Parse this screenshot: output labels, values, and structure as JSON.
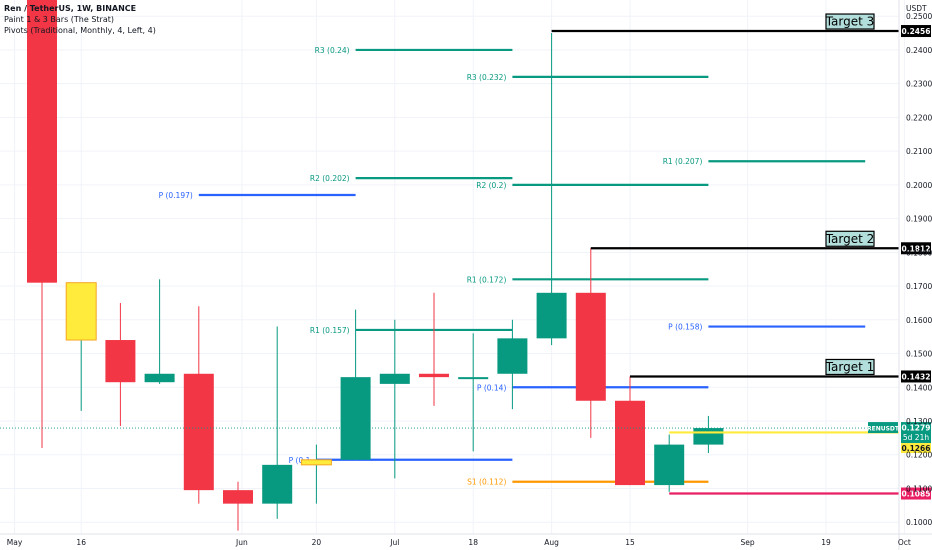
{
  "legend": {
    "symbol": "Ren / TetherUS, 1W, BINANCE",
    "indicator1": "Paint 1 & 3 Bars (The Strat)",
    "indicator2": "Pivots (Traditional, Monthly, 4, Left, 4)"
  },
  "price_axis_title": "USDT",
  "chart_data": {
    "type": "candlestick",
    "ylim": [
      0.0965,
      0.2548
    ],
    "y_ticks": [
      "0.1000",
      "0.1100",
      "0.1200",
      "0.1300",
      "0.1400",
      "0.1500",
      "0.1600",
      "0.1700",
      "0.1800",
      "0.1900",
      "0.2000",
      "0.2100",
      "0.2200",
      "0.2300",
      "0.2400",
      "0.2500"
    ],
    "x_ticks": [
      {
        "label": "May",
        "week": -0.7
      },
      {
        "label": "16",
        "week": 1
      },
      {
        "label": "Jun",
        "week": 5.1
      },
      {
        "label": "20",
        "week": 7
      },
      {
        "label": "Jul",
        "week": 9
      },
      {
        "label": "18",
        "week": 11
      },
      {
        "label": "Aug",
        "week": 13
      },
      {
        "label": "15",
        "week": 15
      },
      {
        "label": "Sep",
        "week": 18
      },
      {
        "label": "19",
        "week": 20
      },
      {
        "label": "Oct",
        "week": 22
      }
    ],
    "candles": [
      {
        "week": 0,
        "open": 0.256,
        "high": 0.256,
        "low": 0.122,
        "close": 0.171,
        "color": "red"
      },
      {
        "week": 1,
        "open": 0.171,
        "high": 0.171,
        "low": 0.133,
        "close": 0.154,
        "color": "yellow"
      },
      {
        "week": 2,
        "open": 0.154,
        "high": 0.165,
        "low": 0.1285,
        "close": 0.1415,
        "color": "red"
      },
      {
        "week": 3,
        "open": 0.1415,
        "high": 0.172,
        "low": 0.141,
        "close": 0.144,
        "color": "green"
      },
      {
        "week": 4,
        "open": 0.144,
        "high": 0.164,
        "low": 0.1055,
        "close": 0.1095,
        "color": "red"
      },
      {
        "week": 5,
        "open": 0.1095,
        "high": 0.112,
        "low": 0.0975,
        "close": 0.1055,
        "color": "red"
      },
      {
        "week": 6,
        "open": 0.1055,
        "high": 0.158,
        "low": 0.101,
        "close": 0.117,
        "color": "green"
      },
      {
        "week": 7,
        "open": 0.117,
        "high": 0.123,
        "low": 0.1055,
        "close": 0.1185,
        "color": "yellow"
      },
      {
        "week": 8,
        "open": 0.1185,
        "high": 0.163,
        "low": 0.1185,
        "close": 0.143,
        "color": "green"
      },
      {
        "week": 9,
        "open": 0.141,
        "high": 0.16,
        "low": 0.113,
        "close": 0.144,
        "color": "green"
      },
      {
        "week": 10,
        "open": 0.144,
        "high": 0.168,
        "low": 0.1345,
        "close": 0.143,
        "color": "red"
      },
      {
        "week": 11,
        "open": 0.143,
        "high": 0.156,
        "low": 0.121,
        "close": 0.143,
        "color": "green"
      },
      {
        "week": 12,
        "open": 0.144,
        "high": 0.16,
        "low": 0.1335,
        "close": 0.1545,
        "color": "green"
      },
      {
        "week": 13,
        "open": 0.1545,
        "high": 0.245,
        "low": 0.1525,
        "close": 0.168,
        "color": "green"
      },
      {
        "week": 14,
        "open": 0.168,
        "high": 0.1812,
        "low": 0.125,
        "close": 0.136,
        "color": "red"
      },
      {
        "week": 15,
        "open": 0.136,
        "high": 0.1432,
        "low": 0.111,
        "close": 0.111,
        "color": "red"
      },
      {
        "week": 16,
        "open": 0.111,
        "high": 0.126,
        "low": 0.109,
        "close": 0.123,
        "color": "green"
      },
      {
        "week": 17,
        "open": 0.123,
        "high": 0.1315,
        "low": 0.1205,
        "close": 0.1279,
        "color": "green"
      }
    ],
    "pivots": [
      {
        "label": "R3 (0.24)",
        "value": 0.24,
        "from": 8,
        "to": 12,
        "kind": "R"
      },
      {
        "label": "R2 (0.202)",
        "value": 0.202,
        "from": 8,
        "to": 12,
        "kind": "R"
      },
      {
        "label": "P (0.197)",
        "value": 0.197,
        "from": 4,
        "to": 8,
        "kind": "P"
      },
      {
        "label": "R1 (0.157)",
        "value": 0.157,
        "from": 8,
        "to": 12,
        "kind": "R"
      },
      {
        "label": "P (0.1",
        "value": 0.1185,
        "from": 7,
        "to": 8,
        "kind": "P"
      },
      {
        "label": "",
        "value": 0.1185,
        "from": 8,
        "to": 12,
        "kind": "P"
      },
      {
        "label": "R3 (0.232)",
        "value": 0.232,
        "from": 12,
        "to": 17,
        "kind": "R"
      },
      {
        "label": "R2 (0.2)",
        "value": 0.2,
        "from": 12,
        "to": 17,
        "kind": "R"
      },
      {
        "label": "R1 (0.172)",
        "value": 0.172,
        "from": 12,
        "to": 17,
        "kind": "R"
      },
      {
        "label": "P (0.14)",
        "value": 0.14,
        "from": 12,
        "to": 17,
        "kind": "P"
      },
      {
        "label": "S1 (0.112)",
        "value": 0.112,
        "from": 12,
        "to": 17,
        "kind": "S"
      },
      {
        "label": "R1 (0.207)",
        "value": 0.207,
        "from": 17,
        "to": 21,
        "kind": "R"
      },
      {
        "label": "P (0.158)",
        "value": 0.158,
        "from": 17,
        "to": 21,
        "kind": "P"
      }
    ],
    "targets": [
      {
        "label": "Target 3",
        "value": 0.2456,
        "from": 13,
        "price_tag": "0.2456"
      },
      {
        "label": "Target 2",
        "value": 0.1812,
        "from": 14,
        "price_tag": "0.1812"
      },
      {
        "label": "Target 1",
        "value": 0.1432,
        "from": 15,
        "price_tag": "0.1432"
      }
    ],
    "support_line": {
      "value": 0.1085,
      "from": 16,
      "price_tag": "0.1085"
    },
    "yellow_line": {
      "value": 0.1266,
      "from": 16,
      "price_tag": "0.1266"
    },
    "current_price": {
      "value": 0.1279,
      "symbol_tag": "RENUSDT",
      "price_tag": "0.1279",
      "countdown": "5d 21h"
    }
  },
  "colors": {
    "bull": "#089981",
    "bear": "#f23645",
    "yellow": "#ffeb3b",
    "yellow_border": "#f5a623",
    "pivot_r": "#089981",
    "pivot_p": "#2962ff",
    "pivot_s": "#ff9800",
    "target": "#000000",
    "support": "#e91e63",
    "target_bg": "#b2dfdb"
  }
}
